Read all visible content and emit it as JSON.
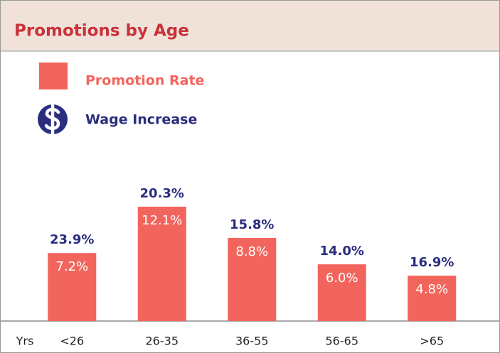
{
  "chart_data": {
    "type": "bar",
    "title": "Promotions by Age",
    "x_label": "Yrs",
    "categories": [
      "<26",
      "26-35",
      "36-55",
      "56-65",
      ">65"
    ],
    "series": [
      {
        "name": "Promotion Rate",
        "color": "#f2655d",
        "values": [
          7.2,
          12.1,
          8.8,
          6.0,
          4.8
        ],
        "value_labels": [
          "7.2%",
          "12.1%",
          "8.8%",
          "6.0%",
          "4.8%"
        ]
      },
      {
        "name": "Wage Increase",
        "color": "#2b2e7e",
        "values": [
          23.9,
          20.3,
          15.8,
          14.0,
          16.9
        ],
        "value_labels": [
          "23.9%",
          "20.3%",
          "15.8%",
          "14.0%",
          "16.9%"
        ]
      }
    ]
  }
}
